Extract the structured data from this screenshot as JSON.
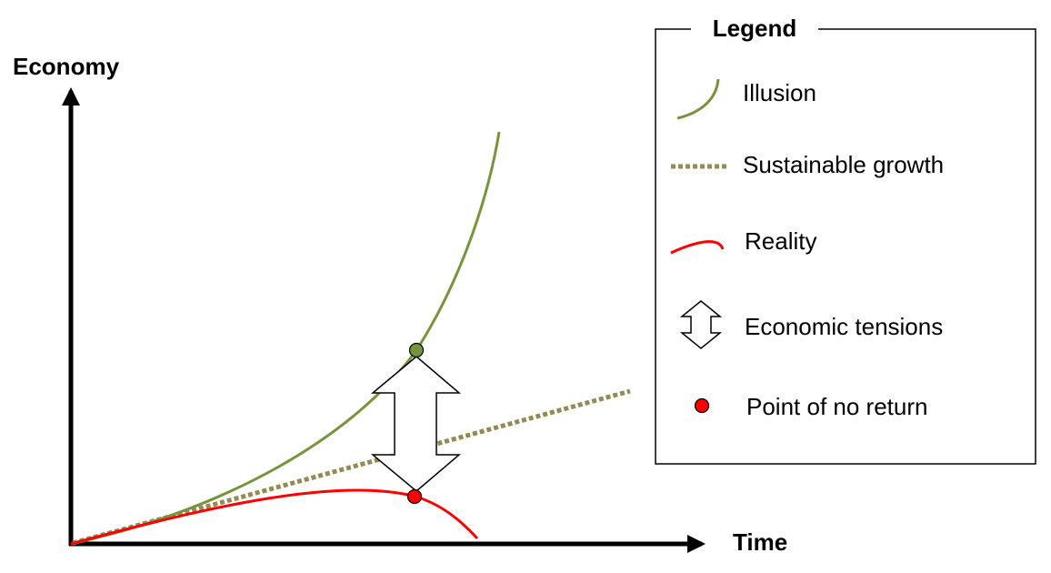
{
  "axes": {
    "y_label": "Economy",
    "x_label": "Time"
  },
  "legend": {
    "title": "Legend",
    "items": [
      "Illusion",
      "Sustainable growth",
      "Reality",
      "Economic tensions",
      "Point of no return"
    ]
  }
}
